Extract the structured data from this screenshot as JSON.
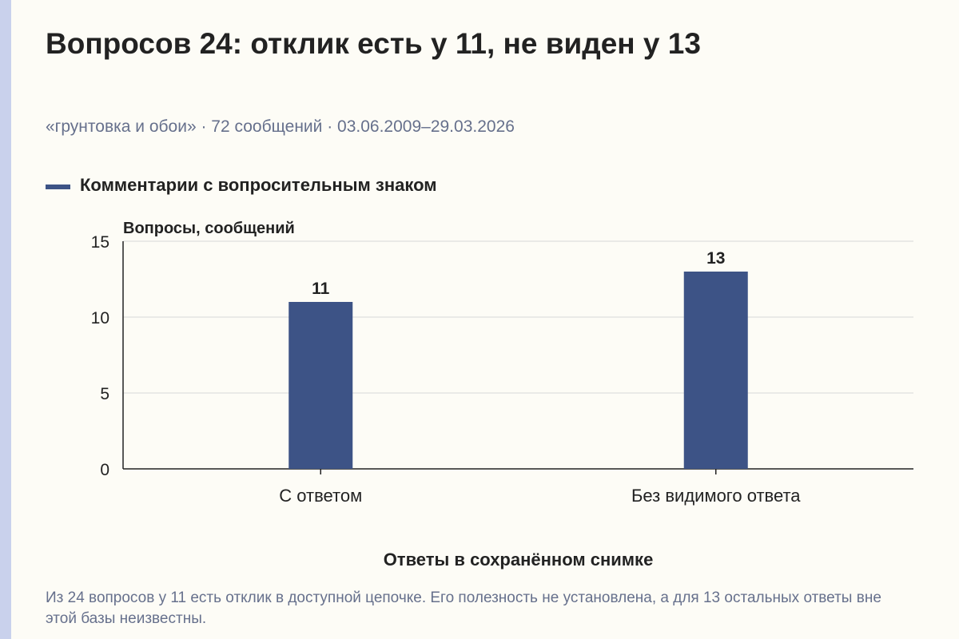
{
  "header": {
    "title": "Вопросов 24: отклик есть у 11, не виден у 13",
    "subtitle": "«грунтовка и обои» · 72 сообщений · 03.06.2009–29.03.2026"
  },
  "footer": {
    "note": "Из 24 вопросов у 11 есть отклик в доступной цепочке. Его полезность не установлена, а для 13 остальных ответы вне этой базы неизвестны."
  },
  "colors": {
    "bar": "#3d5386",
    "grid": "#d8d8d8",
    "axis": "#222222",
    "background": "#fdfcf6",
    "muted_text": "#66708c"
  },
  "chart_data": {
    "type": "bar",
    "categories": [
      "С ответом",
      "Без видимого ответа"
    ],
    "series": [
      {
        "name": "Комментарии с вопросительным знаком",
        "values": [
          11,
          13
        ]
      }
    ],
    "data_labels": [
      "11",
      "13"
    ],
    "ylabel": "Вопросы, сообщений",
    "xlabel": "Ответы в сохранённом снимке",
    "ylim": [
      0,
      15
    ],
    "yticks": [
      0,
      5,
      10,
      15
    ],
    "grid": true,
    "legend_position": "top-left"
  }
}
